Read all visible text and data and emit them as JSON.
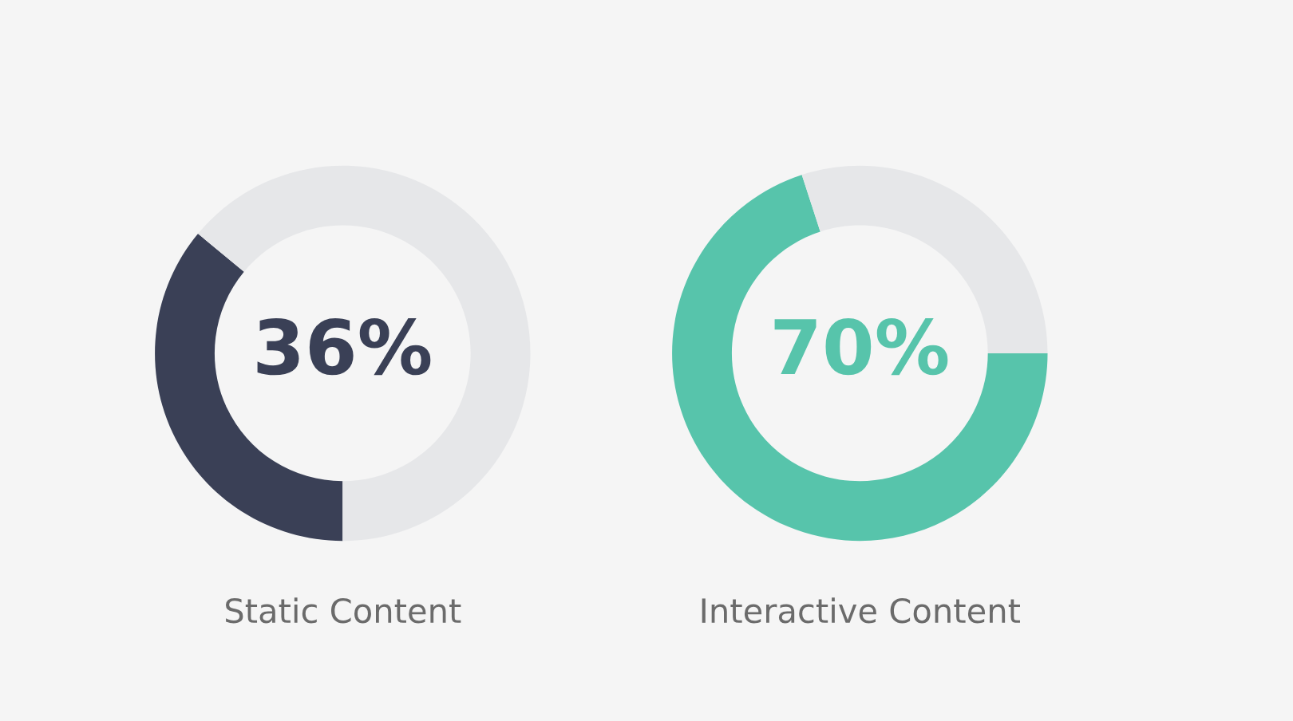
{
  "chart_data": [
    {
      "type": "donut",
      "categories": [
        null,
        null
      ],
      "values": [
        36,
        64
      ],
      "colors": [
        "#3a4056",
        "#e6e7e9"
      ],
      "annotations": [
        "36%"
      ],
      "xlabel": "Static Content"
    },
    {
      "type": "donut",
      "categories": [
        null,
        null
      ],
      "values": [
        70,
        30
      ],
      "colors": [
        "#57c4ab",
        "#e6e7e9"
      ],
      "annotations": [
        "70%"
      ],
      "xlabel": "Interactive Content"
    }
  ]
}
